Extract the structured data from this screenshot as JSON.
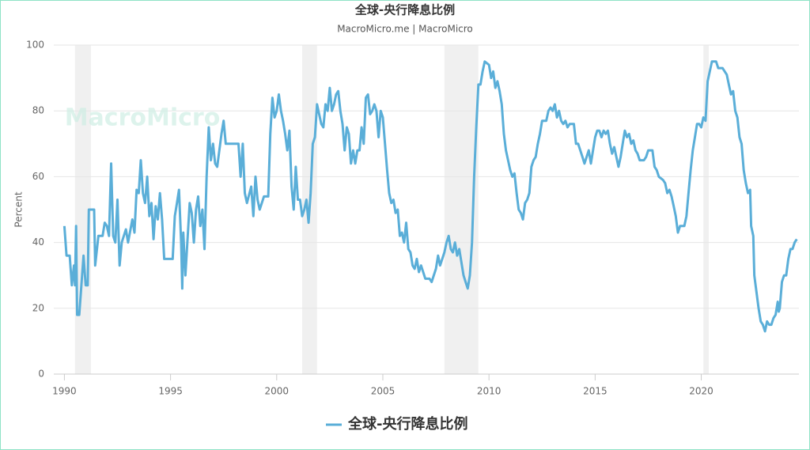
{
  "chart_data": {
    "type": "line",
    "title": "全球-央行降息比例",
    "subtitle": "MacroMicro.me | MacroMicro",
    "watermark": "MacroMicro",
    "y_label": "Percent",
    "xlim": [
      1989.5,
      2024.6
    ],
    "xticks": [
      1990,
      1995,
      2000,
      2005,
      2010,
      2015,
      2020
    ],
    "ylim": [
      0,
      100
    ],
    "yticks": [
      0,
      20,
      40,
      60,
      80,
      100
    ],
    "grid": true,
    "legend": "bottom",
    "shaded_ranges": [
      [
        1990.5,
        1991.25
      ],
      [
        2001.2,
        2001.9
      ],
      [
        2007.9,
        2009.5
      ],
      [
        2020.1,
        2020.35
      ]
    ],
    "shade_color": "#f0f0f0",
    "x": [
      1990.0,
      1990.1,
      1990.25,
      1990.35,
      1990.45,
      1990.5,
      1990.55,
      1990.6,
      1990.7,
      1990.8,
      1990.9,
      1991.0,
      1991.1,
      1991.15,
      1991.4,
      1991.45,
      1991.6,
      1991.8,
      1991.9,
      1992.0,
      1992.1,
      1992.2,
      1992.3,
      1992.4,
      1992.5,
      1992.6,
      1992.7,
      1992.9,
      1993.0,
      1993.2,
      1993.3,
      1993.4,
      1993.5,
      1993.6,
      1993.7,
      1993.8,
      1993.9,
      1994.0,
      1994.1,
      1994.2,
      1994.3,
      1994.4,
      1994.5,
      1994.6,
      1994.7,
      1994.9,
      1995.1,
      1995.2,
      1995.3,
      1995.4,
      1995.5,
      1995.55,
      1995.6,
      1995.7,
      1995.8,
      1995.9,
      1996.0,
      1996.1,
      1996.2,
      1996.3,
      1996.4,
      1996.5,
      1996.6,
      1996.7,
      1996.8,
      1996.9,
      1997.0,
      1997.1,
      1997.2,
      1997.3,
      1997.4,
      1997.5,
      1997.6,
      1997.8,
      1998.0,
      1998.2,
      1998.3,
      1998.4,
      1998.5,
      1998.6,
      1998.8,
      1998.9,
      1999.0,
      1999.1,
      1999.2,
      1999.4,
      1999.6,
      1999.7,
      1999.8,
      1999.9,
      2000.0,
      2000.1,
      2000.2,
      2000.3,
      2000.4,
      2000.5,
      2000.6,
      2000.7,
      2000.8,
      2000.9,
      2001.0,
      2001.1,
      2001.2,
      2001.3,
      2001.4,
      2001.5,
      2001.6,
      2001.7,
      2001.8,
      2001.9,
      2002.0,
      2002.1,
      2002.2,
      2002.3,
      2002.4,
      2002.5,
      2002.6,
      2002.7,
      2002.8,
      2002.9,
      2003.0,
      2003.1,
      2003.2,
      2003.3,
      2003.4,
      2003.5,
      2003.6,
      2003.7,
      2003.8,
      2003.9,
      2004.0,
      2004.1,
      2004.2,
      2004.3,
      2004.4,
      2004.5,
      2004.6,
      2004.7,
      2004.8,
      2004.9,
      2005.0,
      2005.1,
      2005.2,
      2005.3,
      2005.4,
      2005.5,
      2005.6,
      2005.7,
      2005.8,
      2005.9,
      2006.0,
      2006.1,
      2006.2,
      2006.3,
      2006.4,
      2006.5,
      2006.6,
      2006.7,
      2006.8,
      2007.0,
      2007.2,
      2007.3,
      2007.5,
      2007.6,
      2007.7,
      2007.8,
      2007.9,
      2008.0,
      2008.1,
      2008.2,
      2008.3,
      2008.4,
      2008.5,
      2008.6,
      2008.7,
      2008.8,
      2008.9,
      2009.0,
      2009.1,
      2009.2,
      2009.3,
      2009.4,
      2009.5,
      2009.6,
      2009.7,
      2009.8,
      2010.0,
      2010.1,
      2010.2,
      2010.3,
      2010.4,
      2010.5,
      2010.6,
      2010.7,
      2010.8,
      2010.9,
      2011.0,
      2011.1,
      2011.2,
      2011.3,
      2011.4,
      2011.5,
      2011.6,
      2011.7,
      2011.8,
      2011.9,
      2012.0,
      2012.1,
      2012.2,
      2012.3,
      2012.4,
      2012.5,
      2012.6,
      2012.7,
      2012.8,
      2012.9,
      2013.0,
      2013.1,
      2013.2,
      2013.3,
      2013.4,
      2013.5,
      2013.6,
      2013.7,
      2013.8,
      2014.0,
      2014.1,
      2014.2,
      2014.3,
      2014.4,
      2014.5,
      2014.6,
      2014.7,
      2014.8,
      2014.9,
      2015.0,
      2015.1,
      2015.2,
      2015.3,
      2015.4,
      2015.5,
      2015.6,
      2015.7,
      2015.8,
      2015.9,
      2016.0,
      2016.1,
      2016.2,
      2016.3,
      2016.4,
      2016.5,
      2016.6,
      2016.7,
      2016.8,
      2016.9,
      2017.0,
      2017.1,
      2017.3,
      2017.4,
      2017.5,
      2017.7,
      2017.8,
      2017.9,
      2018.0,
      2018.2,
      2018.3,
      2018.4,
      2018.5,
      2018.6,
      2018.7,
      2018.8,
      2018.9,
      2019.0,
      2019.2,
      2019.3,
      2019.4,
      2019.5,
      2019.6,
      2019.7,
      2019.8,
      2019.9,
      2020.0,
      2020.1,
      2020.2,
      2020.3,
      2020.4,
      2020.5,
      2020.6,
      2020.7,
      2020.8,
      2021.0,
      2021.2,
      2021.3,
      2021.4,
      2021.5,
      2021.6,
      2021.7,
      2021.8,
      2021.9,
      2022.0,
      2022.1,
      2022.2,
      2022.3,
      2022.35,
      2022.45,
      2022.5,
      2022.6,
      2022.7,
      2022.8,
      2022.9,
      2023.0,
      2023.1,
      2023.2,
      2023.3,
      2023.4,
      2023.5,
      2023.6,
      2023.65,
      2023.7,
      2023.8,
      2023.9,
      2024.0,
      2024.1,
      2024.2,
      2024.3,
      2024.4,
      2024.5
    ],
    "series": [
      {
        "name": "全球-央行降息比例",
        "color": "#5aaed8",
        "values": [
          45,
          36,
          36,
          27,
          33,
          27,
          45,
          18,
          18,
          27,
          36,
          27,
          27,
          50,
          50,
          33,
          42,
          42,
          46,
          45,
          42,
          64,
          42,
          40,
          53,
          33,
          40,
          44,
          40,
          47,
          43,
          56,
          55,
          65,
          55,
          52,
          60,
          48,
          52,
          41,
          51,
          47,
          55,
          47,
          35,
          35,
          35,
          48,
          52,
          56,
          40,
          26,
          43,
          30,
          41,
          52,
          49,
          40,
          50,
          54,
          45,
          50,
          38,
          60,
          75,
          65,
          70,
          64,
          63,
          68,
          73,
          77,
          70,
          70,
          70,
          70,
          60,
          70,
          55,
          52,
          57,
          48,
          60,
          53,
          50,
          54,
          54,
          73,
          84,
          78,
          80,
          85,
          80,
          77,
          73,
          68,
          74,
          57,
          50,
          63,
          53,
          53,
          48,
          50,
          53,
          46,
          55,
          70,
          72,
          82,
          79,
          76,
          75,
          82,
          80,
          87,
          80,
          82,
          85,
          86,
          80,
          76,
          68,
          75,
          73,
          64,
          68,
          64,
          68,
          68,
          75,
          70,
          84,
          85,
          79,
          80,
          82,
          80,
          72,
          80,
          78,
          70,
          62,
          55,
          52,
          53,
          49,
          50,
          42,
          43,
          40,
          46,
          38,
          37,
          33,
          32,
          35,
          31,
          33,
          29,
          29,
          28,
          32,
          36,
          33,
          35,
          37,
          40,
          42,
          38,
          37,
          40,
          36,
          38,
          34,
          30,
          28,
          26,
          30,
          40,
          60,
          75,
          88,
          88,
          92,
          95,
          94,
          90,
          92,
          87,
          89,
          86,
          82,
          73,
          68,
          65,
          62,
          60,
          61,
          55,
          50,
          49,
          47,
          52,
          53,
          55,
          63,
          65,
          66,
          70,
          73,
          77,
          77,
          77,
          80,
          81,
          80,
          82,
          78,
          80,
          77,
          76,
          77,
          75,
          76,
          76,
          70,
          70,
          68,
          66,
          64,
          66,
          68,
          64,
          68,
          72,
          74,
          74,
          72,
          74,
          73,
          74,
          70,
          67,
          69,
          66,
          63,
          66,
          70,
          74,
          72,
          73,
          70,
          71,
          68,
          67,
          65,
          65,
          66,
          68,
          68,
          63,
          62,
          60,
          59,
          58,
          55,
          56,
          54,
          51,
          48,
          43,
          45,
          45,
          48,
          55,
          62,
          68,
          72,
          76,
          76,
          75,
          78,
          77,
          89,
          92,
          95,
          95,
          95,
          93,
          93,
          91,
          88,
          85,
          86,
          80,
          78,
          72,
          70,
          62,
          58,
          55,
          56,
          45,
          42,
          30,
          25,
          20,
          16,
          15,
          13,
          16,
          15,
          15,
          17,
          18,
          22,
          19,
          20,
          28,
          30,
          30,
          35,
          38,
          38,
          40,
          41
        ]
      }
    ]
  }
}
